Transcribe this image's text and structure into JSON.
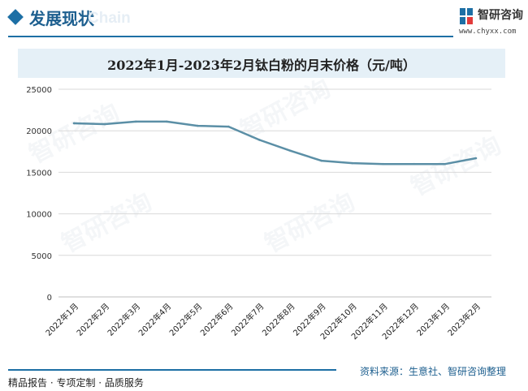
{
  "header": {
    "section_title": "发展现状",
    "bg_text": "Chain",
    "brand_name": "智研咨询",
    "brand_url": "www.chyxx.com",
    "accent_color": "#1d6fa5"
  },
  "watermark_text": "智研咨询",
  "chart_data": {
    "type": "line",
    "title": "2022年1月-2023年2月钛白粉的月末价格（元/吨）",
    "categories": [
      "2022年1月",
      "2022年2月",
      "2022年3月",
      "2022年4月",
      "2022年5月",
      "2022年6月",
      "2022年7月",
      "2022年8月",
      "2022年9月",
      "2022年10月",
      "2022年11月",
      "2022年12月",
      "2023年1月",
      "2023年2月"
    ],
    "values": [
      20900,
      20800,
      21100,
      21100,
      20600,
      20500,
      18900,
      17600,
      16400,
      16100,
      16000,
      16000,
      16000,
      16700
    ],
    "ylim": [
      0,
      25000
    ],
    "yticks": [
      0,
      5000,
      10000,
      15000,
      20000,
      25000
    ],
    "grid": true,
    "line_color": "#5b8fa6",
    "title_band_color": "#e5f0f7"
  },
  "footer": {
    "left": "精品报告 · 专项定制 · 品质服务",
    "right": "资料来源：生意社、智研咨询整理"
  }
}
